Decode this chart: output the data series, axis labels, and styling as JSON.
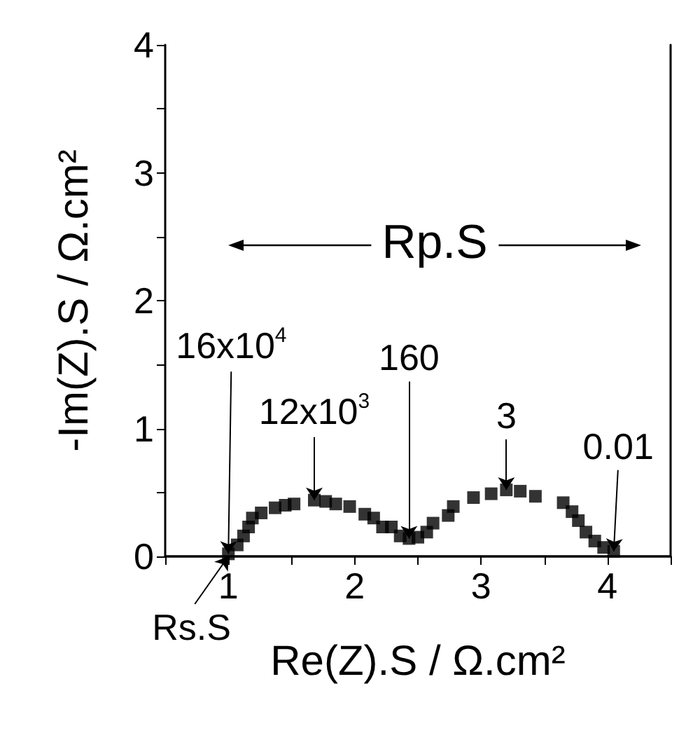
{
  "chart_data": {
    "type": "scatter",
    "xlabel": "Re(Z).S / Ω.cm²",
    "ylabel": "-Im(Z).S / Ω.cm²",
    "xlim": [
      0.5,
      4.5
    ],
    "xticks": [
      {
        "value": 0.5,
        "label": null
      },
      1,
      {
        "value": 1.5,
        "label": null
      },
      2,
      {
        "value": 2.5,
        "label": null
      },
      3,
      {
        "value": 3.5,
        "label": null
      },
      4,
      {
        "value": 4.5,
        "label": null
      }
    ],
    "ylim": [
      0,
      4
    ],
    "yticks": [
      0,
      {
        "value": 0.5,
        "label": null
      },
      1,
      {
        "value": 1.5,
        "label": null
      },
      2,
      {
        "value": 2.5,
        "label": null
      },
      3,
      {
        "value": 3.5,
        "label": null
      },
      4
    ],
    "grid": false,
    "marker": "square",
    "series": [
      {
        "color": "#000000",
        "x": [
          1.0,
          1.07,
          1.12,
          1.16,
          1.19,
          1.26,
          1.37,
          1.45,
          1.52,
          1.68,
          1.77,
          1.85,
          1.96,
          2.08,
          2.15,
          2.22,
          2.29,
          2.36,
          2.43,
          2.5,
          2.57,
          2.62,
          2.74,
          2.78,
          2.94,
          3.08,
          3.2,
          3.31,
          3.43,
          3.65,
          3.72,
          3.77,
          3.83,
          3.9,
          3.97,
          4.05
        ],
        "values": [
          0.02,
          0.09,
          0.16,
          0.23,
          0.3,
          0.34,
          0.38,
          0.4,
          0.41,
          0.44,
          0.43,
          0.41,
          0.39,
          0.33,
          0.3,
          0.23,
          0.23,
          0.16,
          0.14,
          0.15,
          0.19,
          0.26,
          0.32,
          0.39,
          0.46,
          0.49,
          0.52,
          0.51,
          0.47,
          0.42,
          0.35,
          0.28,
          0.19,
          0.12,
          0.07,
          0.04
        ]
      }
    ],
    "annotations": [
      "Rp.S",
      {
        "text": "16x10$^{4}$",
        "x": 1.0,
        "y": 0.02
      },
      {
        "text": "12x10$^{3}$",
        "x": 1.68,
        "y": 0.44
      },
      {
        "text": "160",
        "x": 2.43,
        "y": 0.14
      },
      {
        "text": "3",
        "x": 3.2,
        "y": 0.52
      },
      {
        "text": "0.01",
        "x": 4.05,
        "y": 0.04
      },
      {
        "text": "Rs.S",
        "x": 1.0,
        "y": 0.0
      }
    ]
  }
}
